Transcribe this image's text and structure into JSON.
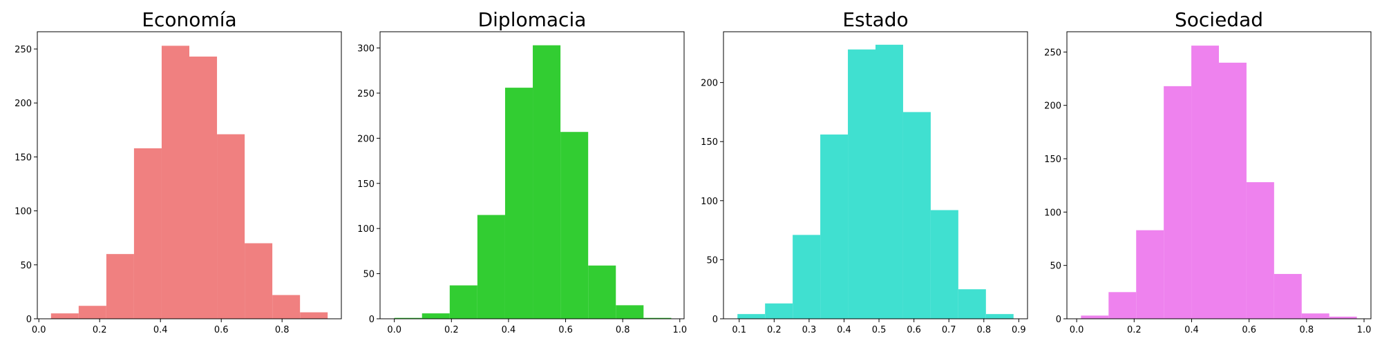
{
  "chart_data": [
    {
      "type": "bar",
      "title": "Economía",
      "color": "#f08080",
      "bin_edges": [
        0.04,
        0.131,
        0.222,
        0.313,
        0.404,
        0.495,
        0.586,
        0.677,
        0.768,
        0.859,
        0.95
      ],
      "values": [
        5,
        12,
        60,
        158,
        253,
        243,
        171,
        70,
        22,
        6
      ],
      "xlim": [
        -0.005,
        0.995
      ],
      "ylim": [
        0,
        266
      ],
      "xticks": [
        0.0,
        0.2,
        0.4,
        0.6,
        0.8
      ],
      "xtick_labels": [
        "0.0",
        "0.2",
        "0.4",
        "0.6",
        "0.8"
      ],
      "yticks": [
        0,
        50,
        100,
        150,
        200,
        250
      ],
      "ytick_labels": [
        "0",
        "50",
        "100",
        "150",
        "200",
        "250"
      ]
    },
    {
      "type": "bar",
      "title": "Diplomacia",
      "color": "#32cd32",
      "bin_edges": [
        0.0,
        0.097,
        0.194,
        0.291,
        0.388,
        0.485,
        0.582,
        0.679,
        0.776,
        0.873,
        0.97
      ],
      "values": [
        1,
        6,
        37,
        115,
        256,
        303,
        207,
        59,
        15,
        1
      ],
      "xlim": [
        -0.05,
        1.015
      ],
      "ylim": [
        0,
        318
      ],
      "xticks": [
        0.0,
        0.2,
        0.4,
        0.6,
        0.8,
        1.0
      ],
      "xtick_labels": [
        "0.0",
        "0.2",
        "0.4",
        "0.6",
        "0.8",
        "1.0"
      ],
      "yticks": [
        0,
        50,
        100,
        150,
        200,
        250,
        300
      ],
      "ytick_labels": [
        "0",
        "50",
        "100",
        "150",
        "200",
        "250",
        "300"
      ]
    },
    {
      "type": "bar",
      "title": "Estado",
      "color": "#40e0d0",
      "bin_edges": [
        0.095,
        0.174,
        0.253,
        0.332,
        0.411,
        0.49,
        0.569,
        0.648,
        0.727,
        0.806,
        0.885
      ],
      "values": [
        4,
        13,
        71,
        156,
        228,
        232,
        175,
        92,
        25,
        4
      ],
      "xlim": [
        0.055,
        0.925
      ],
      "ylim": [
        0,
        243
      ],
      "xticks": [
        0.1,
        0.2,
        0.3,
        0.4,
        0.5,
        0.6,
        0.7,
        0.8,
        0.9
      ],
      "xtick_labels": [
        "0.1",
        "0.2",
        "0.3",
        "0.4",
        "0.5",
        "0.6",
        "0.7",
        "0.8",
        "0.9"
      ],
      "yticks": [
        0,
        50,
        100,
        150,
        200
      ],
      "ytick_labels": [
        "0",
        "50",
        "100",
        "150",
        "200"
      ]
    },
    {
      "type": "bar",
      "title": "Sociedad",
      "color": "#ee82ee",
      "bin_edges": [
        0.015,
        0.111,
        0.207,
        0.303,
        0.399,
        0.495,
        0.591,
        0.687,
        0.783,
        0.879,
        0.975
      ],
      "values": [
        3,
        25,
        83,
        218,
        256,
        240,
        128,
        42,
        5,
        2
      ],
      "xlim": [
        -0.034,
        1.024
      ],
      "ylim": [
        0,
        269
      ],
      "xticks": [
        0.0,
        0.2,
        0.4,
        0.6,
        0.8,
        1.0
      ],
      "xtick_labels": [
        "0.0",
        "0.2",
        "0.4",
        "0.6",
        "0.8",
        "1.0"
      ],
      "yticks": [
        0,
        50,
        100,
        150,
        200,
        250
      ],
      "ytick_labels": [
        "0",
        "50",
        "100",
        "150",
        "200",
        "250"
      ]
    }
  ]
}
